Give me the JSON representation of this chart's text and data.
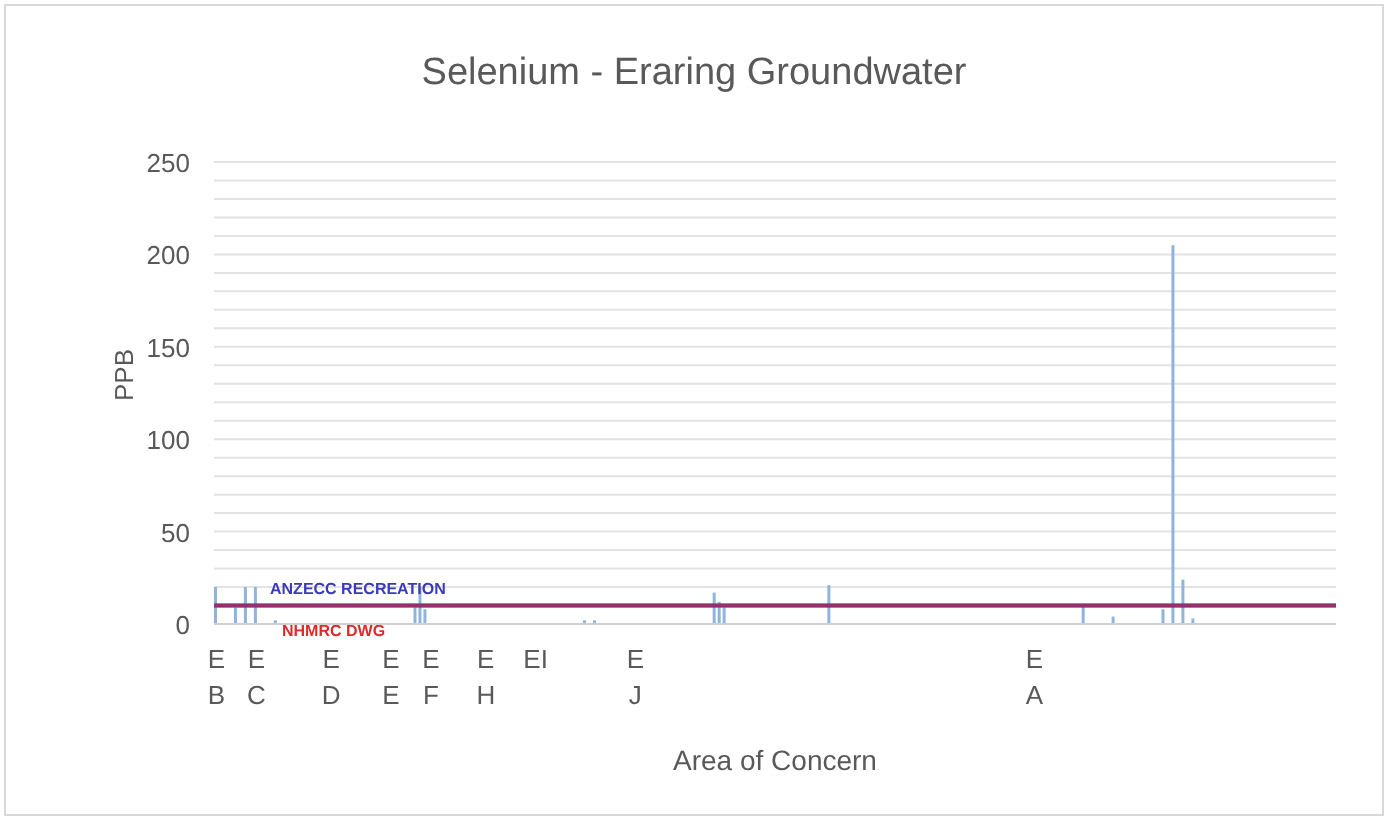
{
  "chart_data": {
    "type": "bar",
    "title": "Selenium - Eraring Groundwater",
    "xlabel": "Area of Concern",
    "ylabel": "PPB",
    "categories": [
      "E B",
      null,
      null,
      null,
      null,
      null,
      null,
      null,
      "E C",
      null,
      null,
      null,
      null,
      null,
      null,
      null,
      null,
      null,
      null,
      null,
      null,
      null,
      null,
      "E D",
      null,
      null,
      null,
      null,
      null,
      null,
      null,
      null,
      null,
      null,
      null,
      "E E",
      null,
      null,
      null,
      null,
      null,
      null,
      null,
      "E F",
      null,
      null,
      null,
      null,
      null,
      null,
      null,
      null,
      null,
      null,
      "E H",
      null,
      null,
      null,
      null,
      null,
      null,
      null,
      null,
      null,
      "EI",
      null,
      null,
      null,
      null,
      null,
      null,
      null,
      null,
      null,
      null,
      null,
      null,
      null,
      null,
      null,
      null,
      null,
      null,
      null,
      "E J",
      null,
      null,
      null,
      null,
      null,
      null,
      null,
      null,
      null,
      null,
      null,
      null,
      null,
      null,
      null,
      null,
      null,
      null,
      null,
      null,
      null,
      null,
      null,
      null,
      null,
      null,
      null,
      null,
      null,
      null,
      null,
      null,
      null,
      null,
      null,
      null,
      null,
      null,
      null,
      null,
      null,
      null,
      null,
      null,
      null,
      null,
      null,
      null,
      null,
      null,
      null,
      null,
      null,
      null,
      null,
      null,
      null,
      null,
      null,
      null,
      null,
      null,
      null,
      null,
      null,
      null,
      null,
      null,
      null,
      null,
      null,
      null,
      null,
      null,
      null,
      null,
      null,
      null,
      null,
      "E A",
      null,
      null,
      null,
      null,
      null,
      null,
      null,
      null,
      null,
      null,
      null,
      null,
      null,
      null,
      null,
      null,
      null,
      null,
      null,
      null,
      null,
      null,
      null,
      null,
      null,
      null,
      null,
      null,
      null,
      null,
      null,
      null,
      null,
      null,
      null,
      null,
      null,
      null,
      null,
      null,
      null,
      null,
      null,
      null,
      null,
      null,
      null,
      null,
      null,
      null,
      null,
      null,
      null,
      null,
      null,
      null,
      null,
      null,
      null,
      null
    ],
    "values": [
      20,
      null,
      null,
      null,
      9,
      null,
      20,
      null,
      20,
      null,
      null,
      null,
      2,
      null,
      null,
      null,
      null,
      null,
      null,
      null,
      null,
      null,
      null,
      null,
      null,
      null,
      null,
      null,
      null,
      null,
      null,
      null,
      null,
      null,
      null,
      null,
      null,
      null,
      null,
      null,
      9,
      20,
      8,
      null,
      null,
      null,
      null,
      null,
      null,
      null,
      null,
      null,
      null,
      null,
      null,
      null,
      null,
      null,
      null,
      null,
      null,
      null,
      null,
      null,
      null,
      null,
      null,
      null,
      null,
      null,
      null,
      null,
      null,
      null,
      2,
      null,
      2,
      null,
      null,
      null,
      null,
      null,
      null,
      null,
      null,
      null,
      null,
      null,
      null,
      null,
      null,
      null,
      null,
      null,
      null,
      null,
      null,
      null,
      null,
      null,
      17,
      12,
      9,
      null,
      null,
      null,
      null,
      null,
      null,
      null,
      null,
      null,
      null,
      null,
      null,
      null,
      null,
      null,
      null,
      null,
      null,
      null,
      null,
      21,
      null,
      null,
      null,
      null,
      null,
      null,
      null,
      null,
      null,
      null,
      null,
      null,
      null,
      null,
      null,
      null,
      null,
      null,
      null,
      null,
      null,
      null,
      null,
      null,
      null,
      null,
      null,
      null,
      null,
      null,
      null,
      null,
      null,
      null,
      null,
      null,
      null,
      null,
      null,
      null,
      null,
      null,
      null,
      null,
      null,
      null,
      null,
      null,
      null,
      null,
      10,
      null,
      null,
      null,
      null,
      null,
      4,
      null,
      null,
      null,
      null,
      null,
      null,
      null,
      null,
      null,
      8,
      null,
      205,
      null,
      24,
      null,
      3,
      null,
      null,
      null,
      null,
      null,
      null,
      null,
      null,
      null,
      null,
      null,
      null,
      null,
      null,
      null,
      null,
      null,
      null,
      null,
      null,
      null,
      null,
      null,
      null,
      null,
      null,
      null,
      null
    ],
    "color": "#8fb4de",
    "ylim": [
      0,
      250
    ],
    "yticks": [
      0,
      {
        "value": 10,
        "label": null
      },
      {
        "value": 20,
        "label": null
      },
      {
        "value": 30,
        "label": null
      },
      {
        "value": 40,
        "label": null
      },
      50,
      {
        "value": 60,
        "label": null
      },
      {
        "value": 70,
        "label": null
      },
      {
        "value": 80,
        "label": null
      },
      {
        "value": 90,
        "label": null
      },
      100,
      {
        "value": 110,
        "label": null
      },
      {
        "value": 120,
        "label": null
      },
      {
        "value": 130,
        "label": null
      },
      {
        "value": 140,
        "label": null
      },
      150,
      {
        "value": 160,
        "label": null
      },
      {
        "value": 170,
        "label": null
      },
      {
        "value": 180,
        "label": null
      },
      {
        "value": 190,
        "label": null
      },
      200,
      {
        "value": 210,
        "label": null
      },
      {
        "value": 220,
        "label": null
      },
      {
        "value": 230,
        "label": null
      },
      {
        "value": 240,
        "label": null
      },
      250
    ],
    "grid": "y",
    "legend": false,
    "ref_lines": [
      {
        "axis": "y",
        "value": 10,
        "label": "ANZECC RECREATION",
        "color": "#3b3bb8"
      },
      {
        "axis": "y",
        "value": 10,
        "label": "NHMRC DWG",
        "color": "#e02a2a"
      }
    ]
  }
}
